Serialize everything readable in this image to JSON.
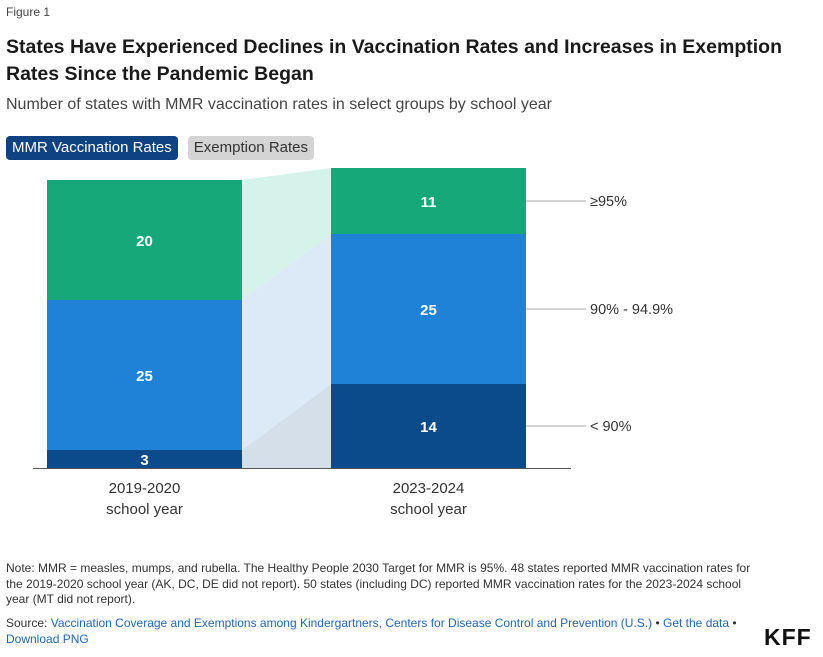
{
  "figure_label": "Figure 1",
  "title": "States Have Experienced Declines in Vaccination Rates and Increases in Exemption Rates Since the Pandemic Began",
  "subtitle": "Number of states with MMR vaccination rates in select groups by school year",
  "tabs": [
    {
      "label": "MMR Vaccination Rates",
      "active": true
    },
    {
      "label": "Exemption Rates",
      "active": false
    }
  ],
  "chart_data": {
    "type": "bar",
    "stacked": true,
    "categories": [
      "2019-2020\nschool year",
      "2023-2024\nschool year"
    ],
    "series": [
      {
        "name": "< 90%",
        "values": [
          3,
          14
        ],
        "color": "#0b4a8b",
        "band_color": "#d4dfe9"
      },
      {
        "name": "90% - 94.9%",
        "values": [
          25,
          25
        ],
        "color": "#1f82d6",
        "band_color": "#dce9f7"
      },
      {
        "name": "≥95%",
        "values": [
          20,
          11
        ],
        "color": "#16a878",
        "band_color": "#d5f3ea"
      }
    ],
    "grid": false,
    "legend": "right, beside second bar"
  },
  "note": "Note: MMR = measles, mumps, and rubella. The Healthy People 2030 Target for MMR is 95%. 48 states reported MMR vaccination rates for the 2019-2020 school year (AK, DC, DE did not report). 50 states (including DC) reported MMR vaccination rates for the 2023-2024 school year (MT did not report).",
  "source": {
    "prefix": "Source: ",
    "link_text": "Vaccination Coverage and Exemptions among Kindergartners, Centers for Disease Control and Prevention (U.S.)",
    "sep1": " • ",
    "get_data": "Get the data",
    "sep2": " • ",
    "download": "Download PNG"
  },
  "logo": "KFF"
}
